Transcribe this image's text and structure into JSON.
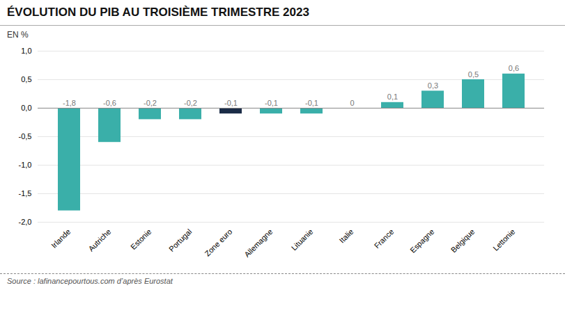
{
  "chart_data": {
    "type": "bar",
    "title": "ÉVOLUTION DU PIB AU TROISIÈME TRIMESTRE 2023",
    "y_label": "EN %",
    "source": "Source : lafinancepourtous.com d’après Eurostat",
    "categories": [
      "Irlande",
      "Autriche",
      "Estonie",
      "Portugal",
      "Zone euro",
      "Allemagne",
      "Lituanie",
      "Italie",
      "France",
      "Espagne",
      "Belgique",
      "Lettonie"
    ],
    "values": [
      -1.8,
      -0.6,
      -0.2,
      -0.2,
      -0.1,
      -0.1,
      -0.1,
      0.0,
      0.1,
      0.3,
      0.5,
      0.6
    ],
    "value_labels": [
      "-1,8",
      "-0,6",
      "-0,2",
      "-0,2",
      "-0,1",
      "-0,1",
      "-0,1",
      "0",
      "0,1",
      "0,3",
      "0,5",
      "0,6"
    ],
    "data_labels": true,
    "colors": [
      "#3aafa9",
      "#3aafa9",
      "#3aafa9",
      "#3aafa9",
      "#1b2c47",
      "#3aafa9",
      "#3aafa9",
      "#3aafa9",
      "#3aafa9",
      "#3aafa9",
      "#3aafa9",
      "#3aafa9"
    ],
    "ylim": [
      -2.0,
      1.0
    ],
    "yticks": [
      {
        "value": -2.0,
        "label": "-2,0"
      },
      {
        "value": -1.5,
        "label": "-1,5"
      },
      {
        "value": -1.0,
        "label": "-1,0"
      },
      {
        "value": -0.5,
        "label": "-0,5"
      },
      {
        "value": 0.0,
        "label": "0,0"
      },
      {
        "value": 0.5,
        "label": "0,5"
      },
      {
        "value": 1.0,
        "label": "1,0"
      }
    ],
    "grid": true
  }
}
